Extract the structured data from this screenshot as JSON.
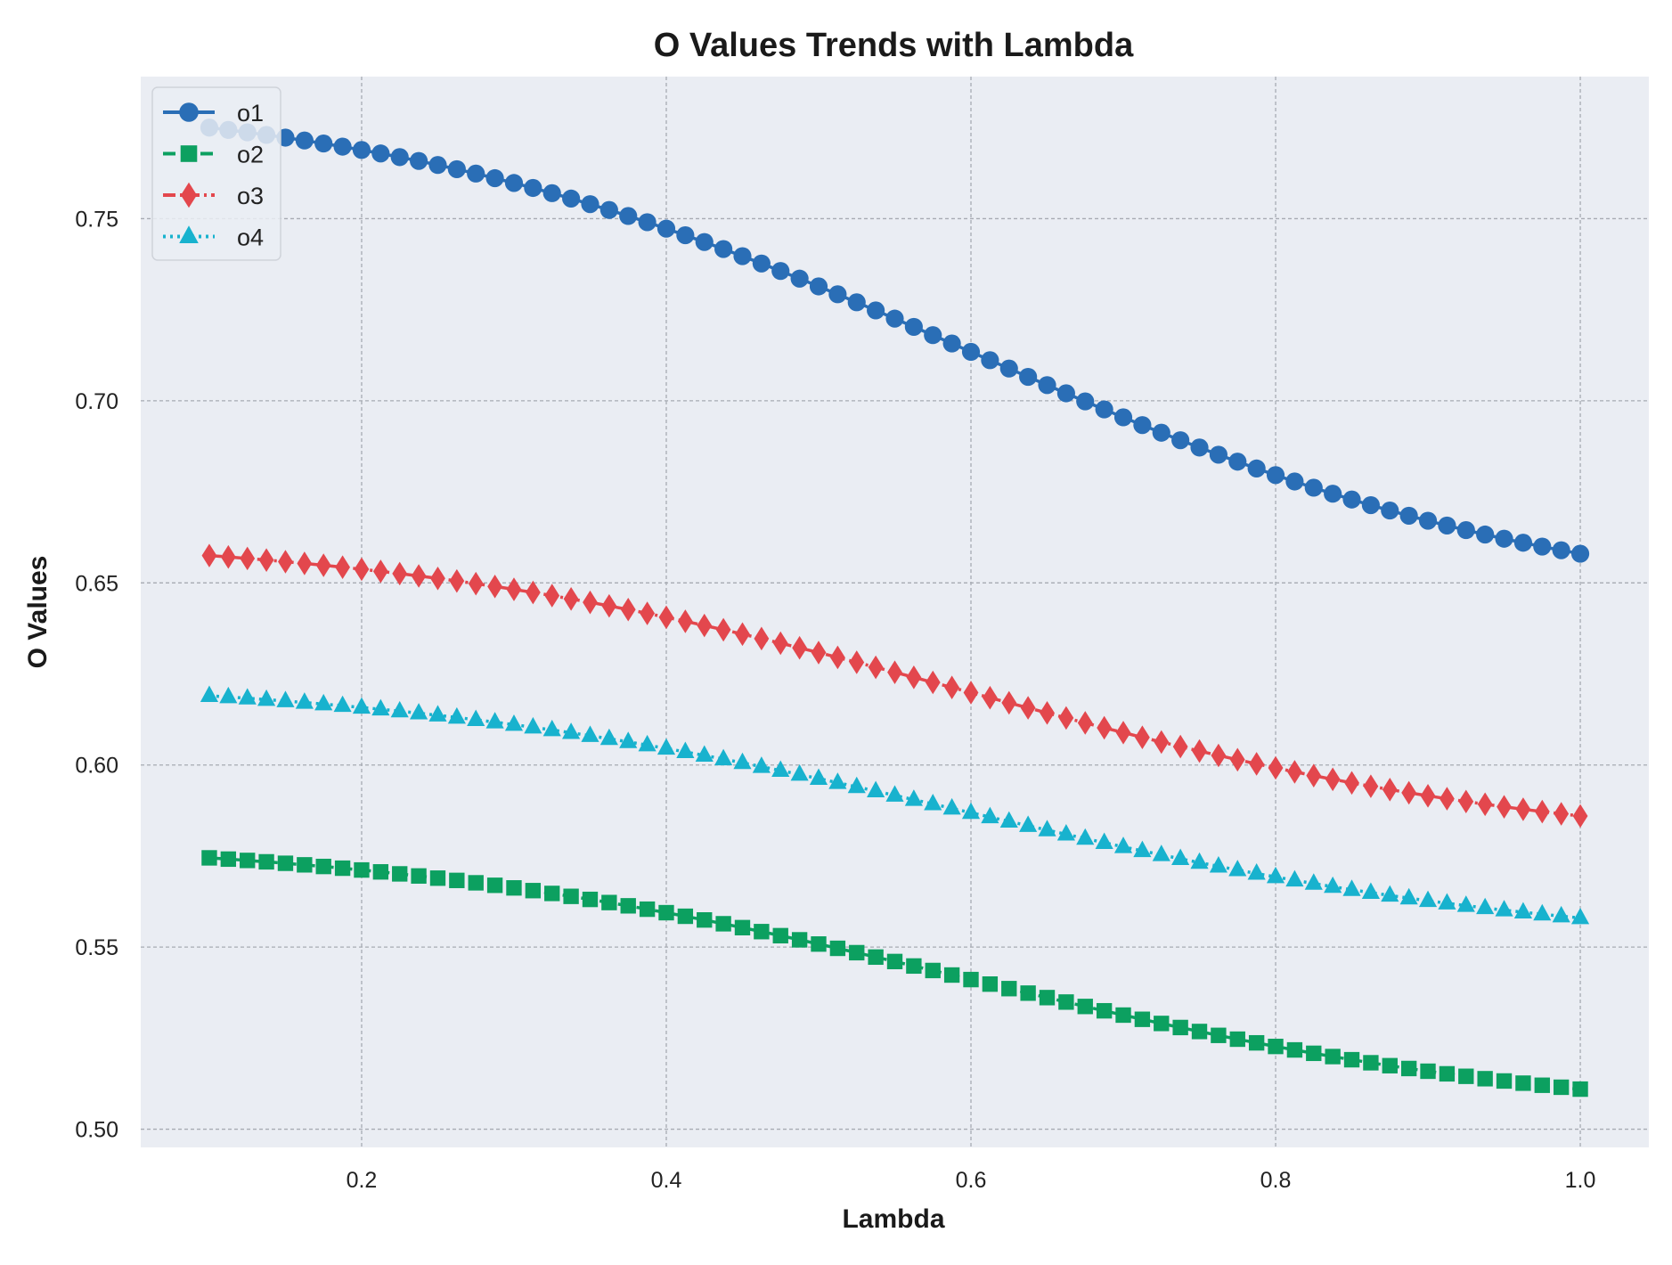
{
  "chart_data": {
    "type": "line",
    "title": "O Values Trends with Lambda",
    "xlabel": "Lambda",
    "ylabel": "O Values",
    "xlim": [
      0.055,
      1.045
    ],
    "ylim": [
      0.495,
      0.789
    ],
    "xticks": [
      0.2,
      0.4,
      0.6,
      0.8,
      1.0
    ],
    "xtick_labels": [
      "0.2",
      "0.4",
      "0.6",
      "0.8",
      "1.0"
    ],
    "yticks": [
      0.5,
      0.55,
      0.6,
      0.65,
      0.7,
      0.75
    ],
    "ytick_labels": [
      "0.50",
      "0.55",
      "0.60",
      "0.65",
      "0.70",
      "0.75"
    ],
    "grid": true,
    "background": "#eaedf3",
    "legend_position": "top-left",
    "x_points": {
      "start": 0.1,
      "stop": 1.0,
      "count": 73
    },
    "series": [
      {
        "name": "o1",
        "color": "#2a6eb6",
        "marker": "circle",
        "line_style": "solid",
        "max_value": 0.775,
        "end_value": 0.658
      },
      {
        "name": "o2",
        "color": "#0ca060",
        "marker": "square",
        "line_style": "dashed",
        "max_value": 0.5745,
        "end_value": 0.511
      },
      {
        "name": "o3",
        "color": "#e3474d",
        "marker": "diamond",
        "line_style": "dashdot",
        "max_value": 0.6575,
        "end_value": 0.586
      },
      {
        "name": "o4",
        "color": "#18b2ce",
        "marker": "triangle",
        "line_style": "dotted",
        "max_value": 0.619,
        "end_value": 0.558
      }
    ]
  }
}
